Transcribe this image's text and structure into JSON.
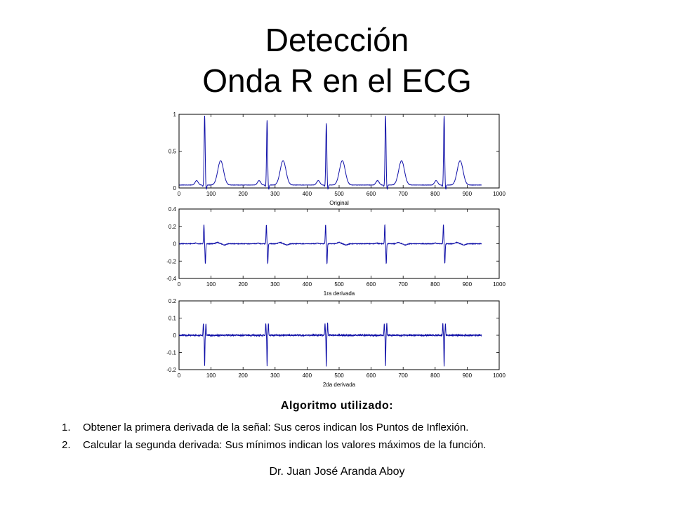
{
  "title": {
    "line1": "Detección",
    "line2": "Onda R en el ECG"
  },
  "colors": {
    "signal": "#1010a8",
    "axis": "#000000"
  },
  "chart_data": [
    {
      "type": "line",
      "xlabel": "Original",
      "xlim": [
        0,
        1000
      ],
      "ylim": [
        0,
        1
      ],
      "xticks": [
        0,
        100,
        200,
        300,
        400,
        500,
        600,
        700,
        800,
        900,
        1000
      ],
      "yticks": [
        0,
        0.5,
        1
      ],
      "ytick_labels": [
        "0",
        "0.5",
        "1"
      ],
      "r_peaks": [
        80,
        275,
        460,
        645,
        828
      ],
      "r_amplitudes": [
        0.98,
        0.92,
        0.88,
        0.98,
        0.98
      ],
      "t_wave_offset": 50,
      "t_wave_amplitude": 0.37,
      "baseline": 0.04,
      "x_end": 945
    },
    {
      "type": "line",
      "xlabel": "1ra derivada",
      "xlim": [
        0,
        1000
      ],
      "ylim": [
        -0.4,
        0.4
      ],
      "xticks": [
        0,
        100,
        200,
        300,
        400,
        500,
        600,
        700,
        800,
        900,
        1000
      ],
      "yticks": [
        -0.4,
        -0.2,
        0,
        0.2,
        0.4
      ],
      "ytick_labels": [
        "-0.4",
        "-0.2",
        "0",
        "0.2",
        "0.4"
      ],
      "peak_max": 0.22,
      "peak_min": -0.23,
      "x_end": 945
    },
    {
      "type": "line",
      "xlabel": "2da derivada",
      "xlim": [
        0,
        1000
      ],
      "ylim": [
        -0.2,
        0.2
      ],
      "xticks": [
        0,
        100,
        200,
        300,
        400,
        500,
        600,
        700,
        800,
        900,
        1000
      ],
      "yticks": [
        -0.2,
        -0.1,
        0,
        0.1,
        0.2
      ],
      "ytick_labels": [
        "-0.2",
        "-0.1",
        "0",
        "0.1",
        "0.2"
      ],
      "peak_max": 0.07,
      "peak_min": -0.18,
      "x_end": 945
    }
  ],
  "algorithm": {
    "heading": "Algoritmo utilizado:",
    "steps": [
      {
        "num": "1.",
        "text": "Obtener la primera derivada de la señal: Sus ceros indican los Puntos de Inflexión."
      },
      {
        "num": "2.",
        "text": "Calcular la segunda derivada: Sus mínimos indican los valores máximos de la función."
      }
    ]
  },
  "footer": "Dr. Juan José Aranda Aboy"
}
